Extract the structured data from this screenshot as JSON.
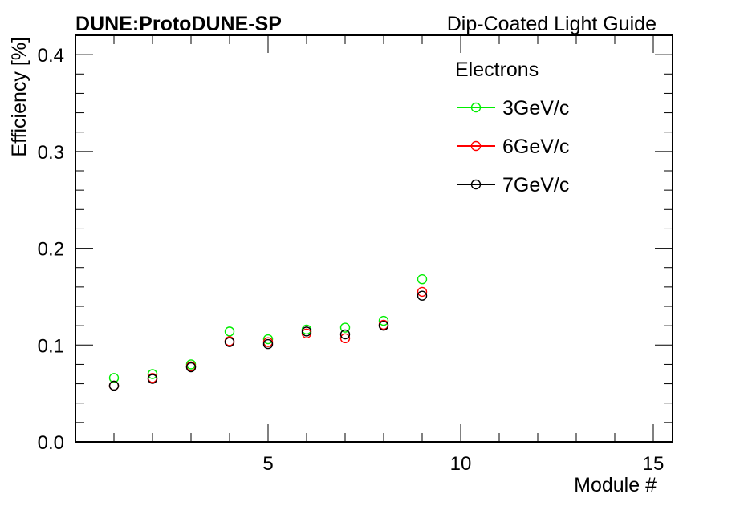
{
  "header": {
    "left_title": "DUNE:ProtoDUNE-SP",
    "right_title": "Dip-Coated Light Guide"
  },
  "chart_data": {
    "type": "scatter",
    "xlabel": "Module #",
    "ylabel": "Efficiency [%]",
    "xlim": [
      0,
      15.5
    ],
    "ylim": [
      0,
      0.42
    ],
    "x_major_ticks": [
      5,
      10,
      15
    ],
    "x_minor_step": 1,
    "y_major_ticks": [
      0.0,
      0.1,
      0.2,
      0.3,
      0.4
    ],
    "y_tick_labels": [
      "0.0",
      "0.1",
      "0.2",
      "0.3",
      "0.4"
    ],
    "y_minor_step": 0.02,
    "grid": false,
    "legend": {
      "title": "Electrons",
      "placement": "top-right"
    },
    "series": [
      {
        "name": "3GeV/c",
        "color": "#00ee00",
        "x": [
          1,
          2,
          3,
          4,
          5,
          6,
          7,
          8,
          9
        ],
        "y": [
          0.066,
          0.07,
          0.08,
          0.114,
          0.106,
          0.116,
          0.118,
          0.125,
          0.168
        ]
      },
      {
        "name": "6GeV/c",
        "color": "#ff0000",
        "x": [
          1,
          2,
          3,
          4,
          5,
          6,
          7,
          8,
          9
        ],
        "y": [
          0.058,
          0.066,
          0.078,
          0.104,
          0.103,
          0.112,
          0.107,
          0.121,
          0.155
        ]
      },
      {
        "name": "7GeV/c",
        "color": "#000000",
        "x": [
          1,
          2,
          3,
          4,
          5,
          6,
          7,
          8,
          9
        ],
        "y": [
          0.058,
          0.065,
          0.077,
          0.103,
          0.101,
          0.114,
          0.111,
          0.12,
          0.151
        ]
      }
    ]
  }
}
